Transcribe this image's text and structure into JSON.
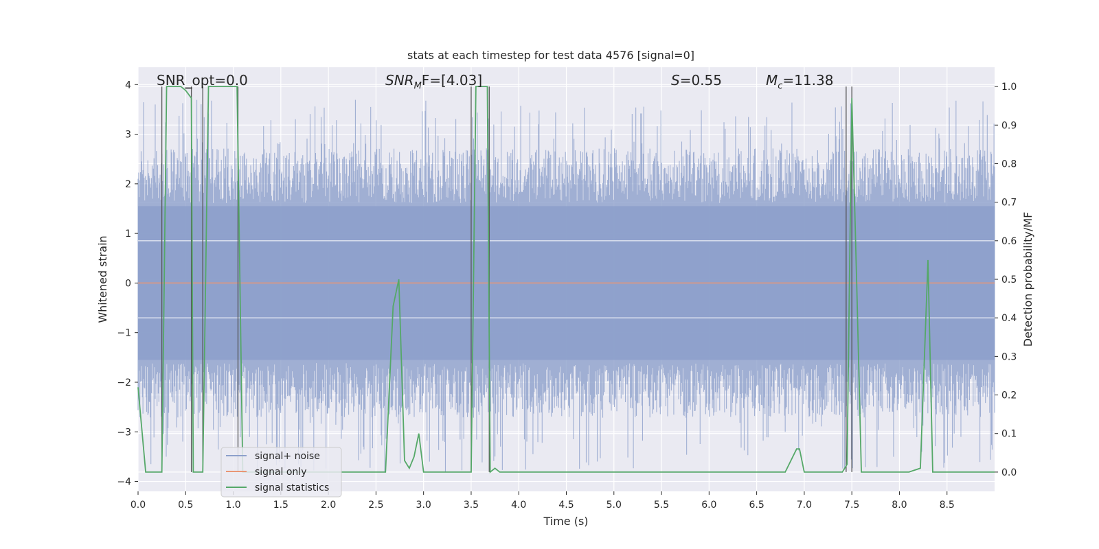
{
  "chart_data": {
    "type": "line",
    "title": "stats at each timestep for test data 4576 [signal=0]",
    "xlabel": "Time (s)",
    "ylabel_left": "Whitened strain",
    "ylabel_right": "Detection probability/MF",
    "xlim": [
      0.0,
      9.0
    ],
    "ylim_left": [
      -4.2,
      4.35
    ],
    "ylim_right": [
      -0.05,
      1.05
    ],
    "xticks": [
      0.0,
      0.5,
      1.0,
      1.5,
      2.0,
      2.5,
      3.0,
      3.5,
      4.0,
      4.5,
      5.0,
      5.5,
      6.0,
      6.5,
      7.0,
      7.5,
      8.0,
      8.5
    ],
    "xtick_labels": [
      "0.0",
      "0.5",
      "1.0",
      "1.5",
      "2.0",
      "2.5",
      "3.0",
      "3.5",
      "4.0",
      "4.5",
      "5.0",
      "5.5",
      "6.0",
      "6.5",
      "7.0",
      "7.5",
      "8.0",
      "8.5"
    ],
    "yticks_left": [
      -4,
      -3,
      -2,
      -1,
      0,
      1,
      2,
      3,
      4
    ],
    "ytick_labels_left": [
      "−4",
      "−3",
      "−2",
      "−1",
      "0",
      "1",
      "2",
      "3",
      "4"
    ],
    "yticks_right": [
      0.0,
      0.1,
      0.2,
      0.3,
      0.4,
      0.5,
      0.6,
      0.7,
      0.8,
      0.9,
      1.0
    ],
    "ytick_labels_right": [
      "0.0",
      "0.1",
      "0.2",
      "0.3",
      "0.4",
      "0.5",
      "0.6",
      "0.7",
      "0.8",
      "0.9",
      "1.0"
    ],
    "annotations": {
      "snr_opt": "SNR_opt=0.0",
      "snr_mf_main": "SNR",
      "snr_mf_sub": "M",
      "snr_mf_rest": "F=[4.03]",
      "s_var": "S",
      "s_rest": "=0.55",
      "mc_var": "M",
      "mc_sub": "c",
      "mc_rest": "=11.38"
    },
    "legend": {
      "location": "lower-left",
      "entries": [
        "signal+ noise",
        "signal only",
        "signal statistics"
      ]
    },
    "series": [
      {
        "name": "signal+ noise",
        "axis": "left",
        "color": "#8da0cb",
        "style": "dense noise, approx. range -3.8 to 3.7",
        "envelope": {
          "lower_mean": -2.0,
          "upper_mean": 2.0,
          "extreme_low": -3.8,
          "extreme_high": 3.7,
          "samples": 1400
        }
      },
      {
        "name": "signal only",
        "axis": "left",
        "color": "#e99675",
        "x": [
          0.0,
          9.0
        ],
        "y": [
          0.0,
          0.0
        ]
      },
      {
        "name": "signal statistics",
        "axis": "right",
        "color": "#55a868",
        "x": [
          0.0,
          0.08,
          0.15,
          0.25,
          0.3,
          0.45,
          0.5,
          0.56,
          0.58,
          0.62,
          0.68,
          0.74,
          0.8,
          0.9,
          1.0,
          1.04,
          1.1,
          1.2,
          1.3,
          1.5,
          1.8,
          2.0,
          2.2,
          2.4,
          2.6,
          2.68,
          2.74,
          2.8,
          2.85,
          2.9,
          2.95,
          3.0,
          3.07,
          3.15,
          3.3,
          3.5,
          3.55,
          3.58,
          3.67,
          3.7,
          3.75,
          3.8,
          3.9,
          4.0,
          4.5,
          4.6,
          4.7,
          5.0,
          6.0,
          6.8,
          6.92,
          6.95,
          7.0,
          7.3,
          7.4,
          7.45,
          7.5,
          7.55,
          7.6,
          7.7,
          7.9,
          8.0,
          8.1,
          8.22,
          8.3,
          8.35,
          8.4,
          8.5,
          8.8,
          9.0
        ],
        "y": [
          0.22,
          0.0,
          0.0,
          0.0,
          1.0,
          1.0,
          0.99,
          0.97,
          0.0,
          0.0,
          0.0,
          1.0,
          1.0,
          1.0,
          1.0,
          1.0,
          0.0,
          0.0,
          0.0,
          0.0,
          0.0,
          0.0,
          0.0,
          0.0,
          0.0,
          0.43,
          0.5,
          0.03,
          0.01,
          0.04,
          0.1,
          0.0,
          0.0,
          0.0,
          0.0,
          0.0,
          1.0,
          1.0,
          1.0,
          0.0,
          0.01,
          0.0,
          0.0,
          0.0,
          0.0,
          0.0,
          0.0,
          0.0,
          0.0,
          0.0,
          0.06,
          0.06,
          0.0,
          0.0,
          0.0,
          0.02,
          0.97,
          0.5,
          0.0,
          0.0,
          0.0,
          0.0,
          0.0,
          0.01,
          0.55,
          0.0,
          0.0,
          0.0,
          0.0,
          0.0
        ]
      }
    ],
    "vertical_markers_x": [
      0.25,
      0.56,
      0.68,
      1.05,
      3.5,
      3.69,
      7.44,
      7.5
    ]
  }
}
